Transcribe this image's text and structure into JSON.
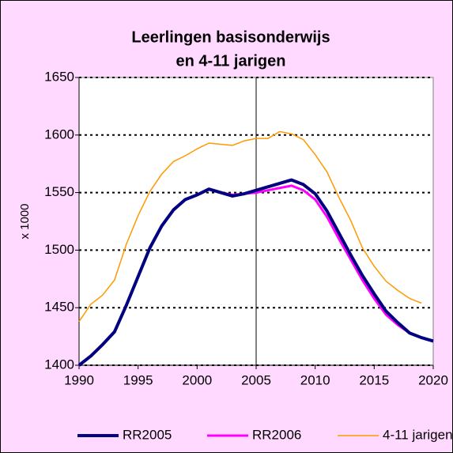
{
  "chart_data": {
    "type": "line",
    "title": [
      "Leerlingen basisonderwijs",
      "en 4-11 jarigen"
    ],
    "y_label": "x 1000",
    "x": [
      1990,
      1991,
      1992,
      1993,
      1994,
      1995,
      1996,
      1997,
      1998,
      1999,
      2000,
      2001,
      2002,
      2003,
      2004,
      2005,
      2006,
      2007,
      2008,
      2009,
      2010,
      2011,
      2012,
      2013,
      2014,
      2015,
      2016,
      2017,
      2018,
      2019,
      2020
    ],
    "series": [
      {
        "name": "RR2005",
        "color": "#000080",
        "width": 4,
        "values": [
          1400,
          1408,
          1418,
          1429,
          1452,
          1477,
          1502,
          1521,
          1535,
          1544,
          1548,
          1553,
          1550,
          1547,
          1549,
          1552,
          1555,
          1558,
          1561,
          1557,
          1549,
          1534,
          1515,
          1496,
          1478,
          1462,
          1447,
          1437,
          1428,
          1424,
          1421
        ]
      },
      {
        "name": "RR2006",
        "color": "#ff00ff",
        "width": 3,
        "values": [
          1400,
          1408,
          1418,
          1429,
          1452,
          1477,
          1502,
          1521,
          1535,
          1544,
          1548,
          1553,
          1550,
          1548,
          1549,
          1550,
          1552,
          1554,
          1556,
          1552,
          1544,
          1529,
          1510,
          1492,
          1474,
          1458,
          1444,
          1435,
          1428,
          1424,
          1421
        ]
      },
      {
        "name": "4-11 jarigen",
        "color": "#ff9900",
        "width": 1.5,
        "values": [
          1438,
          1453,
          1461,
          1474,
          1505,
          1530,
          1551,
          1566,
          1577,
          1582,
          1588,
          1593,
          1592,
          1591,
          1595,
          1597,
          1597,
          1603,
          1601,
          1596,
          1583,
          1568,
          1546,
          1526,
          1502,
          1486,
          1473,
          1465,
          1458,
          1454,
          null
        ]
      }
    ],
    "xlim": [
      1990,
      2020
    ],
    "xticks": [
      1990,
      1995,
      2000,
      2005,
      2010,
      2015,
      2020
    ],
    "ylim": [
      1400,
      1650
    ],
    "yticks": [
      1400,
      1450,
      1500,
      1550,
      1600,
      1650
    ],
    "vline": 2005,
    "grid": true,
    "legend": "bottom"
  }
}
